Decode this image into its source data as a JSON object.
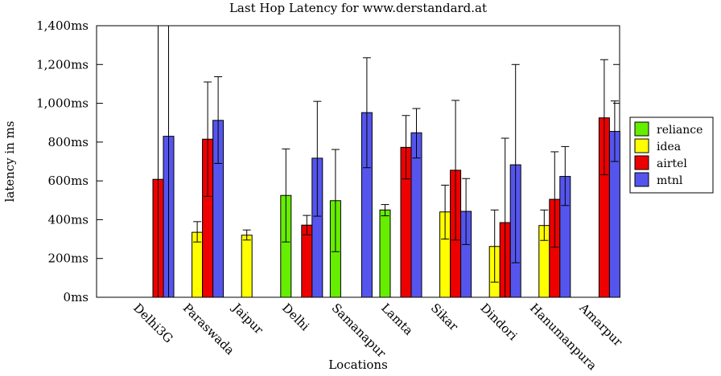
{
  "chart_data": {
    "type": "bar",
    "title": "Last Hop Latency for www.derstandard.at",
    "xlabel": "Locations",
    "ylabel": "latency in ms",
    "ylim": [
      0,
      1400
    ],
    "yticks": [
      0,
      200,
      400,
      600,
      800,
      1000,
      1200,
      1400
    ],
    "ytick_labels": [
      "0ms",
      "200ms",
      "400ms",
      "600ms",
      "800ms",
      "1,000ms",
      "1,200ms",
      "1,400ms"
    ],
    "categories": [
      "Delhi3G",
      "Paraswada",
      "Jaipur",
      "Delhi",
      "Samanapur",
      "Lamta",
      "Sikar",
      "Dindori",
      "Hanumanpura",
      "Amarpur"
    ],
    "legend_position": "right",
    "grid": false,
    "series": [
      {
        "name": "reliance",
        "color": "#66ee00",
        "values": [
          null,
          null,
          null,
          525,
          498,
          450,
          null,
          null,
          null,
          null
        ],
        "err_low": [
          null,
          null,
          null,
          285,
          235,
          420,
          null,
          null,
          null,
          null
        ],
        "err_high": [
          null,
          null,
          null,
          765,
          762,
          478,
          null,
          null,
          null,
          null
        ]
      },
      {
        "name": "idea",
        "color": "#ffff00",
        "values": [
          null,
          335,
          320,
          null,
          null,
          null,
          440,
          262,
          370,
          null
        ],
        "err_low": [
          null,
          285,
          295,
          null,
          null,
          null,
          300,
          78,
          293,
          null
        ],
        "err_high": [
          null,
          390,
          347,
          null,
          null,
          null,
          578,
          450,
          450,
          null
        ]
      },
      {
        "name": "airtel",
        "color": "#ee0000",
        "values": [
          608,
          815,
          null,
          372,
          null,
          773,
          655,
          385,
          505,
          925
        ],
        "err_low": [
          null,
          520,
          null,
          322,
          null,
          610,
          295,
          null,
          258,
          632
        ],
        "err_high": [
          1400,
          1110,
          null,
          422,
          null,
          937,
          1015,
          820,
          750,
          1225
        ]
      },
      {
        "name": "mtnl",
        "color": "#5555ee",
        "values": [
          830,
          912,
          null,
          717,
          952,
          848,
          443,
          683,
          623,
          855
        ],
        "err_low": [
          null,
          690,
          null,
          418,
          668,
          718,
          272,
          178,
          473,
          700
        ],
        "err_high": [
          1400,
          1137,
          null,
          1010,
          1235,
          973,
          612,
          1200,
          777,
          1012
        ]
      }
    ]
  }
}
